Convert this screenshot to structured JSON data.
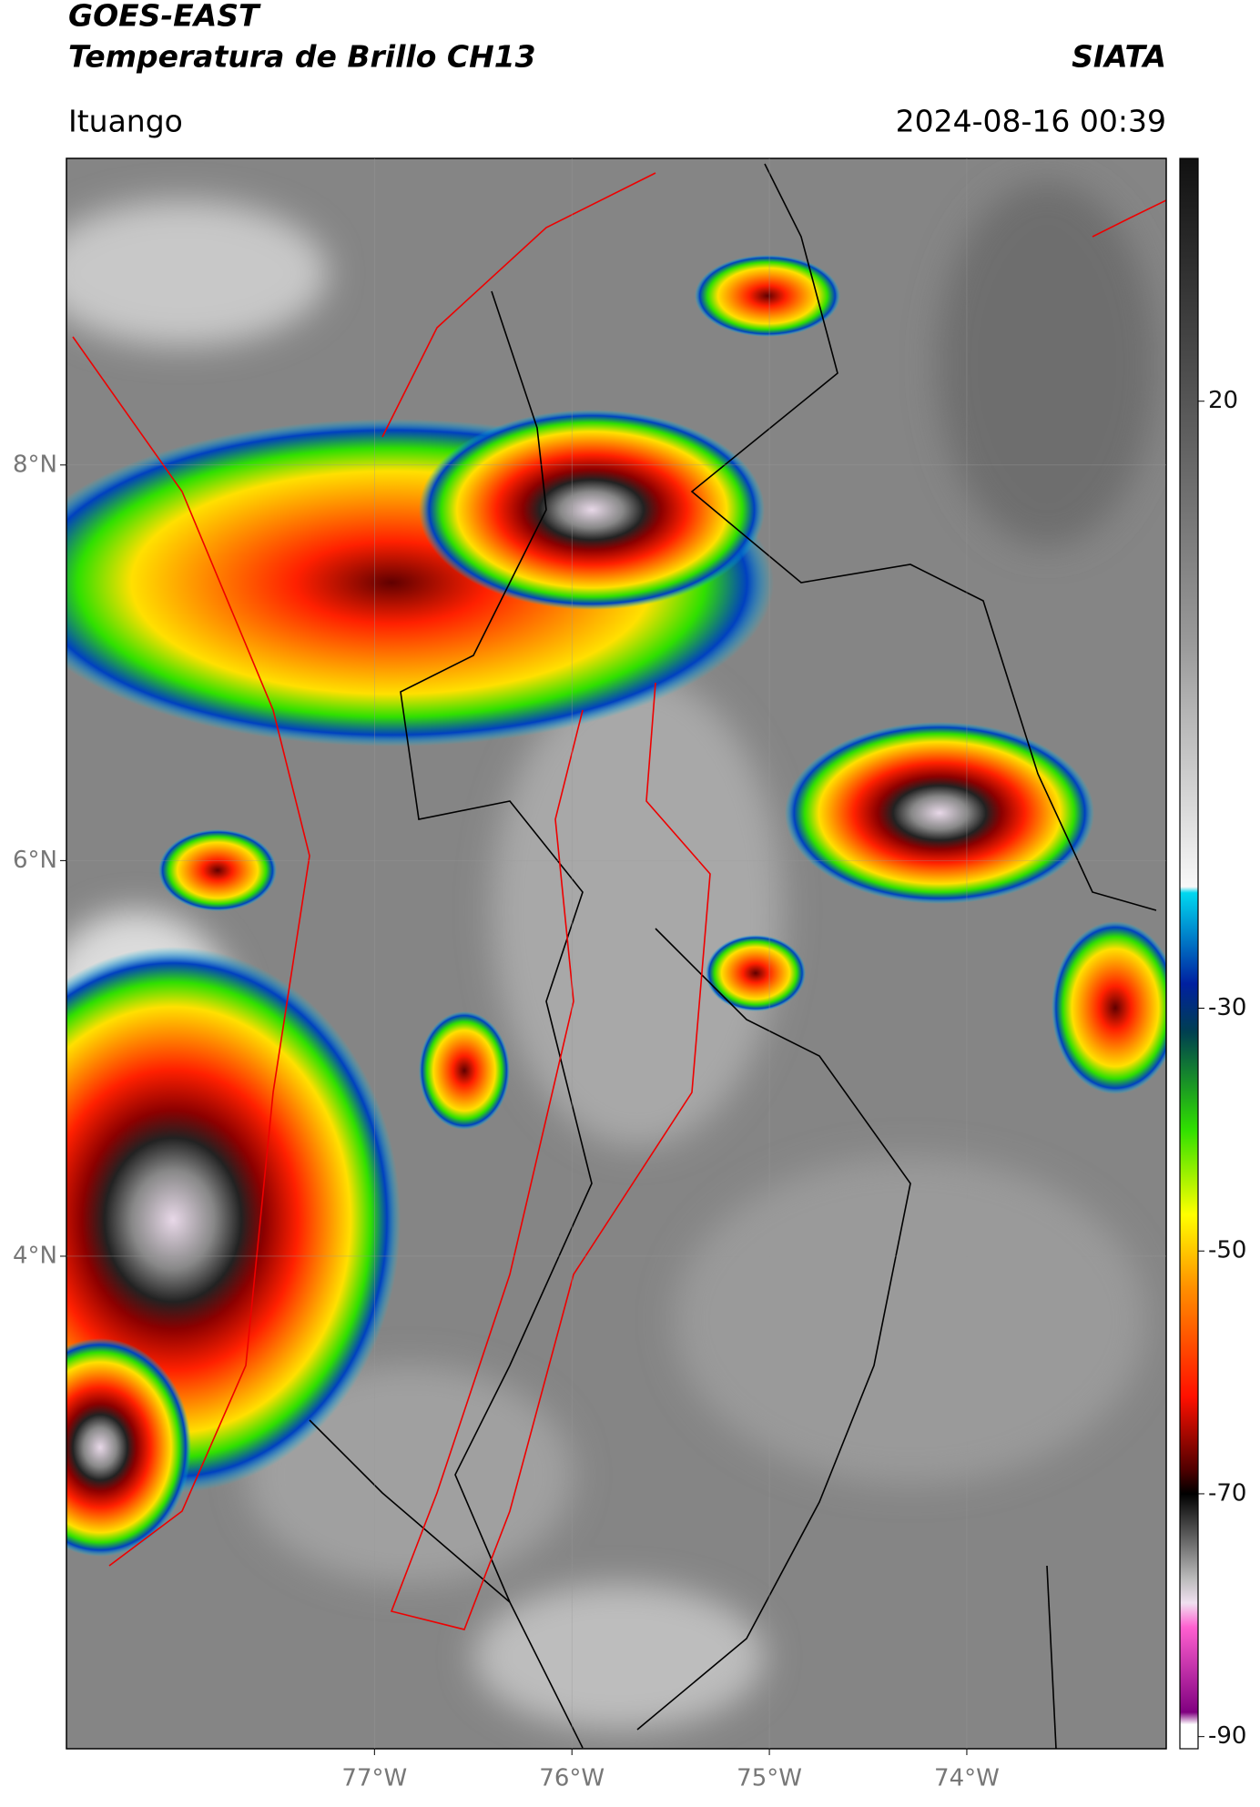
{
  "header": {
    "title_line1": "GOES-EAST",
    "title_line2": "Temperatura de Brillo CH13",
    "agency": "SIATA",
    "location": "Ituango",
    "datetime": "2024-08-16 00:39"
  },
  "map": {
    "lonlim": [
      -78.56,
      -72.99
    ],
    "latlim": [
      1.51,
      9.55
    ],
    "lon_ticks": [
      {
        "value": -77,
        "label": "77°W"
      },
      {
        "value": -76,
        "label": "76°W"
      },
      {
        "value": -75,
        "label": "75°W"
      },
      {
        "value": -74,
        "label": "74°W"
      }
    ],
    "lat_ticks": [
      {
        "value": 8,
        "label": "8°N"
      },
      {
        "value": 6,
        "label": "6°N"
      },
      {
        "value": 4,
        "label": "4°N"
      }
    ]
  },
  "colorbar": {
    "range": [
      -91,
      40
    ],
    "ticks": [
      20,
      -30,
      -50,
      -70,
      -90
    ]
  }
}
